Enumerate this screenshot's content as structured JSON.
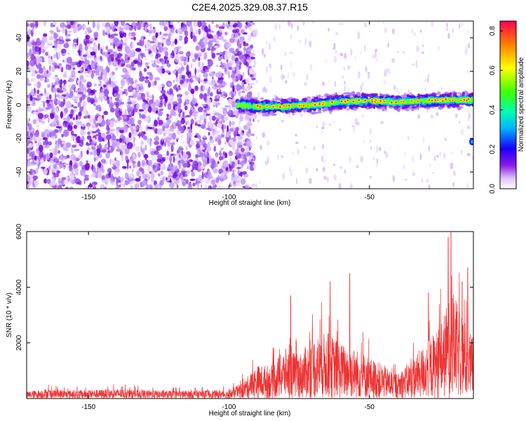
{
  "title": "C2E4.2025.329.08.37.R15",
  "chart_data": [
    {
      "type": "heatmap",
      "xlabel": "Height of straight line (km)",
      "ylabel": "Frequency (Hz)",
      "xlim": [
        -172,
        -13
      ],
      "ylim": [
        -50,
        50
      ],
      "x_ticks": [
        -150,
        -100,
        -50
      ],
      "y_ticks": [
        -40,
        -20,
        0,
        20,
        40
      ],
      "x_tick_labels": [
        "-150",
        "-100",
        "-50"
      ],
      "y_tick_labels": [
        "-40",
        "-20",
        "0",
        "20",
        "40"
      ],
      "colorbar": {
        "label": "Normalized spectral amplitude",
        "range": [
          0,
          0.85
        ],
        "ticks": [
          0,
          0.2,
          0.4,
          0.6,
          0.8
        ],
        "tick_labels": [
          "0.0",
          "0.2",
          "0.4",
          "0.6",
          "0.8"
        ],
        "colormap": [
          "#ffffff",
          "#e6d0ff",
          "#7a00e6",
          "#0000ff",
          "#00c8ff",
          "#00ff80",
          "#ffff00",
          "#ff8000",
          "#ff0040"
        ]
      },
      "features": [
        {
          "region": "noise",
          "x_range": [
            -172,
            -91
          ],
          "freq_range": [
            -50,
            50
          ],
          "level": 0.05
        },
        {
          "region": "signal-band",
          "x_range": [
            -97,
            -13
          ],
          "freq_center": [
            [
              -97,
              0
            ],
            [
              -90,
              -1
            ],
            [
              -80,
              -1
            ],
            [
              -70,
              0
            ],
            [
              -60,
              2
            ],
            [
              -50,
              2.5
            ],
            [
              -40,
              1.5
            ],
            [
              -30,
              2.5
            ],
            [
              -20,
              3
            ],
            [
              -13,
              3
            ]
          ],
          "peak_level": 0.8
        }
      ]
    },
    {
      "type": "line",
      "xlabel": "Height of straight line (km)",
      "ylabel": "SNR (10 * v/v)",
      "xlim": [
        -172,
        -13
      ],
      "ylim": [
        0,
        6000
      ],
      "x_ticks": [
        -150,
        -100,
        -50
      ],
      "y_ticks": [
        2000,
        4000,
        6000
      ],
      "x_tick_labels": [
        "-150",
        "-100",
        "-50"
      ],
      "y_tick_labels": [
        "2000",
        "4000",
        "6000"
      ],
      "color": "#ee3333",
      "envelope": [
        {
          "x": -172,
          "y": 250
        },
        {
          "x": -165,
          "y": 350
        },
        {
          "x": -160,
          "y": 300
        },
        {
          "x": -150,
          "y": 300
        },
        {
          "x": -140,
          "y": 350
        },
        {
          "x": -130,
          "y": 300
        },
        {
          "x": -120,
          "y": 280
        },
        {
          "x": -110,
          "y": 300
        },
        {
          "x": -100,
          "y": 300
        },
        {
          "x": -95,
          "y": 600
        },
        {
          "x": -90,
          "y": 1200
        },
        {
          "x": -85,
          "y": 1200
        },
        {
          "x": -80,
          "y": 1800
        },
        {
          "x": -75,
          "y": 1600
        },
        {
          "x": -70,
          "y": 2200
        },
        {
          "x": -65,
          "y": 2400
        },
        {
          "x": -60,
          "y": 2000
        },
        {
          "x": -55,
          "y": 1800
        },
        {
          "x": -50,
          "y": 1500
        },
        {
          "x": -45,
          "y": 1200
        },
        {
          "x": -40,
          "y": 900
        },
        {
          "x": -35,
          "y": 1400
        },
        {
          "x": -30,
          "y": 2000
        },
        {
          "x": -25,
          "y": 2600
        },
        {
          "x": -22,
          "y": 3500
        },
        {
          "x": -20,
          "y": 3800
        },
        {
          "x": -18,
          "y": 3200
        },
        {
          "x": -15,
          "y": 2600
        },
        {
          "x": -13,
          "y": 2200
        }
      ],
      "peaks": [
        {
          "x": -78,
          "y": 3700
        },
        {
          "x": -64,
          "y": 4200
        },
        {
          "x": -57,
          "y": 4500
        },
        {
          "x": -29,
          "y": 3800
        },
        {
          "x": -22,
          "y": 5800
        },
        {
          "x": -21,
          "y": 6000
        },
        {
          "x": -17,
          "y": 4200
        },
        {
          "x": -15,
          "y": 4700
        }
      ]
    }
  ]
}
